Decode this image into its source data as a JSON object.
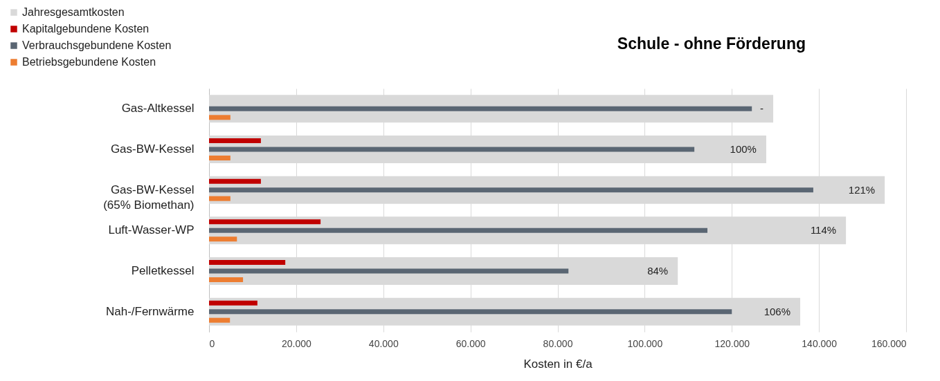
{
  "chart_data": {
    "type": "bar",
    "orientation": "horizontal",
    "title": "Schule - ohne Förderung",
    "xlabel": "Kosten in €/a",
    "categories": [
      "Gas-Altkessel",
      "Gas-BW-Kessel",
      "Gas-BW-Kessel\n(65% Biomethan)",
      "Luft-Wasser-WP",
      "Pelletkessel",
      "Nah-/Fernwärme"
    ],
    "series": [
      {
        "name": "Jahresgesamtkosten",
        "color": "#d9d9d9",
        "values": [
          129500,
          127900,
          155100,
          146200,
          107600,
          135700
        ]
      },
      {
        "name": "Kapitalgebundene Kosten",
        "color": "#c00000",
        "values": [
          null,
          11900,
          11900,
          25600,
          17500,
          11100
        ]
      },
      {
        "name": "Verbrauchsgebundene Kosten",
        "color": "#5a6673",
        "values": [
          124600,
          111400,
          138700,
          114400,
          82500,
          120000
        ]
      },
      {
        "name": "Betriebsgebundene Kosten",
        "color": "#ed7d31",
        "values": [
          4900,
          4900,
          4900,
          6400,
          7800,
          4800
        ]
      }
    ],
    "xlim": [
      0,
      160000
    ],
    "xticks": [
      0,
      {
        "value": 20000,
        "label": "20.000"
      },
      {
        "value": 40000,
        "label": "40.000"
      },
      {
        "value": 60000,
        "label": "60.000"
      },
      {
        "value": 80000,
        "label": "80.000"
      },
      {
        "value": 100000,
        "label": "100.000"
      },
      {
        "value": 120000,
        "label": "120.000"
      },
      {
        "value": 140000,
        "label": "140.000"
      },
      {
        "value": 160000,
        "label": "160.000"
      }
    ],
    "grid": "x",
    "legend": "top left",
    "annotations": [
      {
        "text": "-",
        "x": 129500,
        "y": "Gas-Altkessel"
      },
      {
        "text": "100%",
        "x": 127900,
        "y": "Gas-BW-Kessel"
      },
      {
        "text": "121%",
        "x": 155100,
        "y": "Gas-BW-Kessel\n(65% Biomethan)"
      },
      {
        "text": "114%",
        "x": 146200,
        "y": "Luft-Wasser-WP"
      },
      {
        "text": "84%",
        "x": 107600,
        "y": "Pelletkessel"
      },
      {
        "text": "106%",
        "x": 135700,
        "y": "Nah-/Fernwärme"
      }
    ]
  }
}
